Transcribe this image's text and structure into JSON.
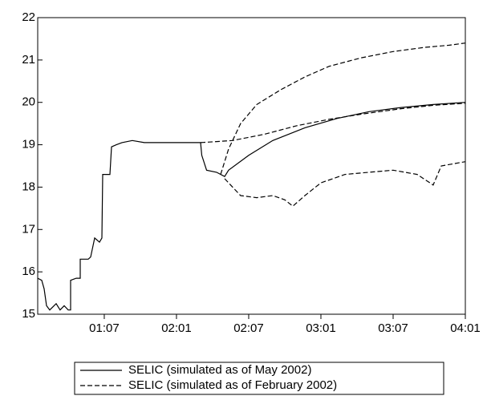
{
  "chart_data": {
    "type": "line",
    "xlim": [
      0.47,
      36
    ],
    "ylim": [
      15,
      22
    ],
    "yticks": [
      15,
      16,
      17,
      18,
      19,
      20,
      21,
      22
    ],
    "xticks": [
      {
        "value": 6,
        "label": "01:07"
      },
      {
        "value": 12,
        "label": "02:01"
      },
      {
        "value": 18,
        "label": "02:07"
      },
      {
        "value": 24,
        "label": "03:01"
      },
      {
        "value": 30,
        "label": "03:07"
      },
      {
        "value": 36,
        "label": "04:01"
      }
    ],
    "legend": "bottom",
    "series": [
      {
        "name": "SELIC (simulated as of May 2002)",
        "color": "#000000",
        "dash": "solid",
        "x": [
          0.47,
          0.8,
          1,
          1.2,
          1.47,
          2,
          2.33,
          2.67,
          3,
          3.2,
          3.2,
          3.67,
          4,
          4,
          4.67,
          4.87,
          5.2,
          5.6,
          5.8,
          5.87,
          6.47,
          6.6,
          7,
          7.47,
          8.33,
          9.33,
          14,
          14.1,
          14.5,
          15.33,
          16,
          16.33,
          18,
          20,
          22.67,
          25.33,
          28,
          30.67,
          33.33,
          36
        ],
        "values": [
          15.85,
          15.8,
          15.6,
          15.2,
          15.1,
          15.25,
          15.1,
          15.2,
          15.1,
          15.1,
          15.8,
          15.85,
          15.85,
          16.3,
          16.3,
          16.35,
          16.8,
          16.7,
          16.8,
          18.3,
          18.3,
          18.95,
          19.0,
          19.05,
          19.1,
          19.05,
          19.05,
          18.75,
          18.4,
          18.35,
          18.25,
          18.4,
          18.75,
          19.1,
          19.4,
          19.62,
          19.78,
          19.88,
          19.95,
          20.0
        ]
      },
      {
        "name": "SELIC (simulated as of February 2002)",
        "color": "#000000",
        "dash": "dashed",
        "x": [
          14,
          16.67,
          19.33,
          22,
          24.67,
          27.33,
          30.67,
          33.33,
          36
        ],
        "values": [
          19.05,
          19.1,
          19.25,
          19.45,
          19.6,
          19.72,
          19.85,
          19.93,
          19.98
        ]
      },
      {
        "color": "#000000",
        "dash": "dashed",
        "x": [
          15.67,
          16.33,
          17.33,
          18.67,
          20.67,
          22.67,
          24.67,
          27.33,
          30,
          32.67,
          34.67,
          36
        ],
        "values": [
          18.3,
          18.9,
          19.5,
          19.95,
          20.3,
          20.6,
          20.85,
          21.05,
          21.2,
          21.3,
          21.35,
          21.4
        ]
      },
      {
        "color": "#000000",
        "dash": "dashed",
        "x": [
          16,
          16.33,
          17.33,
          18.67,
          20,
          21,
          21.67,
          22.67,
          24,
          26,
          28,
          30,
          32,
          33.33,
          34,
          36
        ],
        "values": [
          18.2,
          18.1,
          17.8,
          17.75,
          17.8,
          17.7,
          17.55,
          17.8,
          18.1,
          18.3,
          18.35,
          18.4,
          18.3,
          18.05,
          18.5,
          18.6
        ]
      }
    ]
  }
}
